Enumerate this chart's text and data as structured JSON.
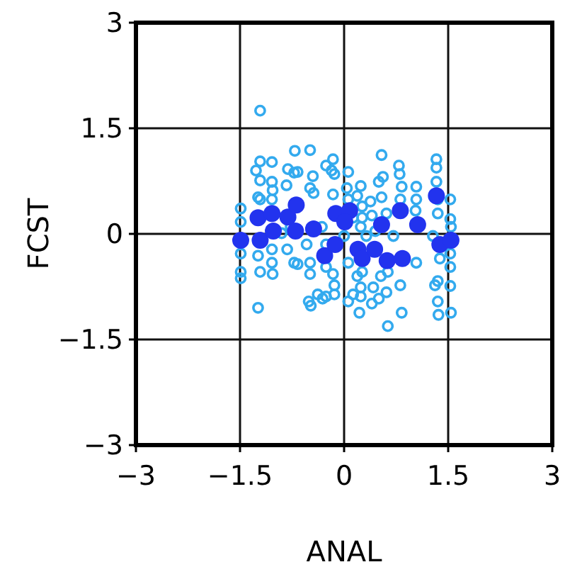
{
  "chart_data": {
    "type": "scatter",
    "xlabel": "ANAL",
    "ylabel": "FCST",
    "xlim": [
      -3,
      3
    ],
    "ylim": [
      -3,
      3
    ],
    "xticks": [
      -3,
      -1.5,
      0,
      1.5,
      3
    ],
    "yticks": [
      -3,
      -1.5,
      0,
      1.5,
      3
    ],
    "grid": true,
    "marker": "circle",
    "series": [
      {
        "color": "#33aaee",
        "x": [
          -1.21,
          -0.71,
          -0.49,
          -1.21,
          -1.04,
          -1.27,
          -1.21,
          -1.04,
          -1.03,
          -0.83,
          -0.81,
          -0.72,
          -0.67,
          -0.45,
          -0.49,
          -0.44,
          -0.26,
          -0.16,
          -0.14,
          -0.18,
          0.06,
          -0.16,
          0.04,
          0.06,
          0.24,
          0.19,
          0.26,
          0.26,
          0.24,
          0.38,
          0.4,
          0.54,
          0.5,
          0.56,
          0.54,
          0.61,
          0.79,
          0.8,
          0.83,
          0.81,
          1.04,
          1.04,
          1.03,
          1.33,
          1.33,
          1.33,
          1.35,
          1.35,
          1.53,
          1.53,
          1.54,
          -1.24,
          -1.21,
          -1.49,
          -1.49,
          -1.04,
          -1.49,
          -1.49,
          -1.49,
          -1.24,
          -1.24,
          -1.21,
          -1.04,
          -1.04,
          -1.03,
          -0.82,
          -0.72,
          -0.67,
          -0.49,
          -0.49,
          -0.51,
          -0.48,
          -0.38,
          -0.31,
          -0.26,
          -0.14,
          -0.16,
          -0.14,
          -0.26,
          0.06,
          0.06,
          0.13,
          0.19,
          0.24,
          0.22,
          0.24,
          0.26,
          0.4,
          0.42,
          0.5,
          0.53,
          0.61,
          0.63,
          0.63,
          0.81,
          0.83,
          1.04,
          1.31,
          1.35,
          1.35,
          1.36,
          1.53,
          1.53,
          1.54,
          1.38,
          1.53,
          -0.77,
          -0.9,
          -0.32,
          -0.26,
          0,
          0.13,
          0.32,
          0.45,
          0.71,
          1.28,
          -0.54
        ],
        "values": [
          1.75,
          1.18,
          1.19,
          1.03,
          1.02,
          0.9,
          0.76,
          0.74,
          0.62,
          0.69,
          0.92,
          0.87,
          0.88,
          0.82,
          0.65,
          0.58,
          0.97,
          1.06,
          0.85,
          0.9,
          0.88,
          0.56,
          0.65,
          0.49,
          0.68,
          0.54,
          0.39,
          0.23,
          0.1,
          0.46,
          0.26,
          1.12,
          0.74,
          0.81,
          0.52,
          0.29,
          0.97,
          0.85,
          0.67,
          0.49,
          0.67,
          0.49,
          0.33,
          1.06,
          0.94,
          0.74,
          0.49,
          0.29,
          0.49,
          0.21,
          0.1,
          0.52,
          0.49,
          0.36,
          0.17,
          0.49,
          -0.28,
          -0.54,
          -0.63,
          -0.31,
          -1.05,
          -0.54,
          -0.22,
          -0.41,
          -0.57,
          -0.22,
          -0.41,
          -0.43,
          -0.41,
          -0.57,
          -0.96,
          -1.02,
          -0.86,
          -0.92,
          -0.89,
          -0.86,
          -0.57,
          -0.73,
          -0.47,
          -0.41,
          -0.96,
          -0.86,
          -0.6,
          -0.76,
          -1.12,
          -0.89,
          -0.54,
          -0.99,
          -0.76,
          -0.92,
          -0.6,
          -0.83,
          -1.31,
          -0.54,
          -0.73,
          -1.12,
          -0.41,
          -0.73,
          -0.67,
          -0.96,
          -1.15,
          -0.47,
          -0.74,
          -1.12,
          -0.35,
          -0.28,
          0.1,
          0.01,
          0.1,
          -0.15,
          -0.03,
          0.23,
          -0.03,
          0.04,
          -0.03,
          -0.03,
          -0.15
        ]
      },
      {
        "color": "#2233ee",
        "x": [
          -1.49,
          -1.24,
          -1.21,
          -1.04,
          -1.02,
          -0.81,
          -0.69,
          -0.7,
          -0.44,
          -0.28,
          -0.13,
          -0.12,
          0.08,
          0.01,
          0.2,
          0.26,
          0.44,
          0.54,
          0.62,
          0.81,
          0.84,
          1.06,
          1.33,
          1.38,
          1.54
        ],
        "values": [
          -0.09,
          0.23,
          -0.09,
          0.29,
          0.04,
          0.24,
          0.41,
          0.04,
          0.07,
          -0.31,
          -0.15,
          0.29,
          0.33,
          0.17,
          -0.22,
          -0.35,
          -0.22,
          0.13,
          -0.38,
          0.33,
          -0.35,
          0.13,
          0.54,
          -0.15,
          -0.09
        ]
      }
    ]
  }
}
